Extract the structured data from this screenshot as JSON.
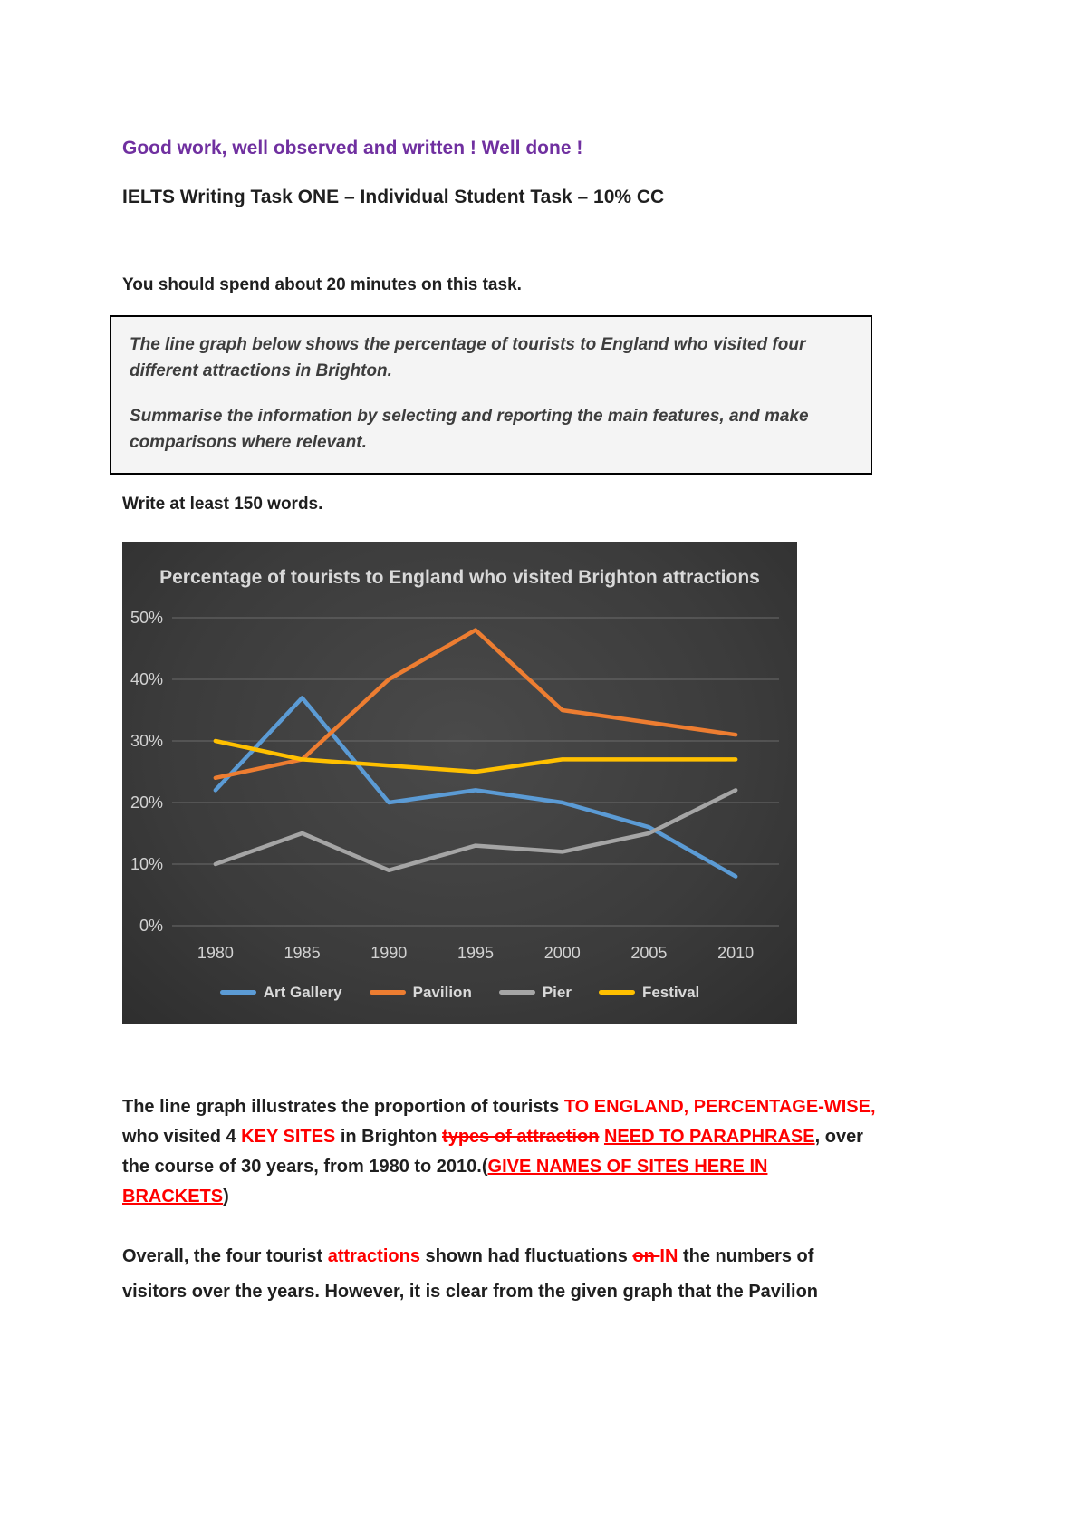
{
  "colors": {
    "accent_purple": "#7030A0",
    "correction_red": "#FF0000",
    "chart_background": "#3b3b3b",
    "chart_text": "#d9d9d9"
  },
  "page": {
    "feedback_heading": "Good work, well observed and written ! Well done !",
    "title": "IELTS Writing Task ONE – Individual Student Task – 10% CC",
    "instruction": "You should spend about 20 minutes on this task.",
    "task_box": {
      "line1": "The line graph below shows the percentage of tourists to England who visited four different attractions in Brighton.",
      "line2": "Summarise the information by selecting and reporting the main features, and make comparisons where relevant."
    },
    "word_count_note": "Write at least 150 words."
  },
  "chart_data": {
    "type": "line",
    "title": "Percentage of tourists to England who visited Brighton attractions",
    "categories": [
      "1980",
      "1985",
      "1990",
      "1995",
      "2000",
      "2005",
      "2010"
    ],
    "series": [
      {
        "name": "Art Gallery",
        "color": "#5B9BD5",
        "values": [
          22,
          37,
          20,
          22,
          20,
          16,
          8
        ]
      },
      {
        "name": "Pavilion",
        "color": "#ED7D31",
        "values": [
          24,
          27,
          40,
          48,
          35,
          33,
          31
        ]
      },
      {
        "name": "Pier",
        "color": "#A5A5A5",
        "values": [
          10,
          15,
          9,
          13,
          12,
          15,
          22
        ]
      },
      {
        "name": "Festival",
        "color": "#FFC000",
        "values": [
          30,
          27,
          26,
          25,
          27,
          27,
          27
        ]
      }
    ],
    "xlabel": "",
    "ylabel": "",
    "ylim": [
      0,
      50
    ],
    "ytick_step": 10,
    "ytick_labels": [
      "0%",
      "10%",
      "20%",
      "30%",
      "40%",
      "50%"
    ],
    "grid": true,
    "legend_position": "bottom"
  },
  "essay": {
    "paragraph1": [
      {
        "t": "The line graph illustrates the proportion of tourists "
      },
      {
        "t": "TO ENGLAND, PERCENTAGE-WISE, ",
        "red": true
      },
      {
        "t": "who visited 4 "
      },
      {
        "t": "KEY SITES",
        "red": true
      },
      {
        "t": " in Brighton "
      },
      {
        "t": "types of attraction",
        "red": true,
        "strike": true
      },
      {
        "t": " "
      },
      {
        "t": "NEED TO PARAPHRASE",
        "red": true,
        "underline": true
      },
      {
        "t": ", over the course of 30 years, from 1980 to 2010.("
      },
      {
        "t": "GIVE NAMES OF SITES HERE IN BRACKETS",
        "red": true,
        "underline": true
      },
      {
        "t": ")"
      }
    ],
    "paragraph2": [
      {
        "t": "Overall, the four tourist "
      },
      {
        "t": "attractions",
        "red": true
      },
      {
        "t": " shown had fluctuations "
      },
      {
        "t": "on ",
        "red": true,
        "strike": true
      },
      {
        "t": "IN",
        "red": true
      },
      {
        "t": " the numbers of visitors over the years. However, it is clear from the given graph that the Pavilion"
      }
    ]
  }
}
